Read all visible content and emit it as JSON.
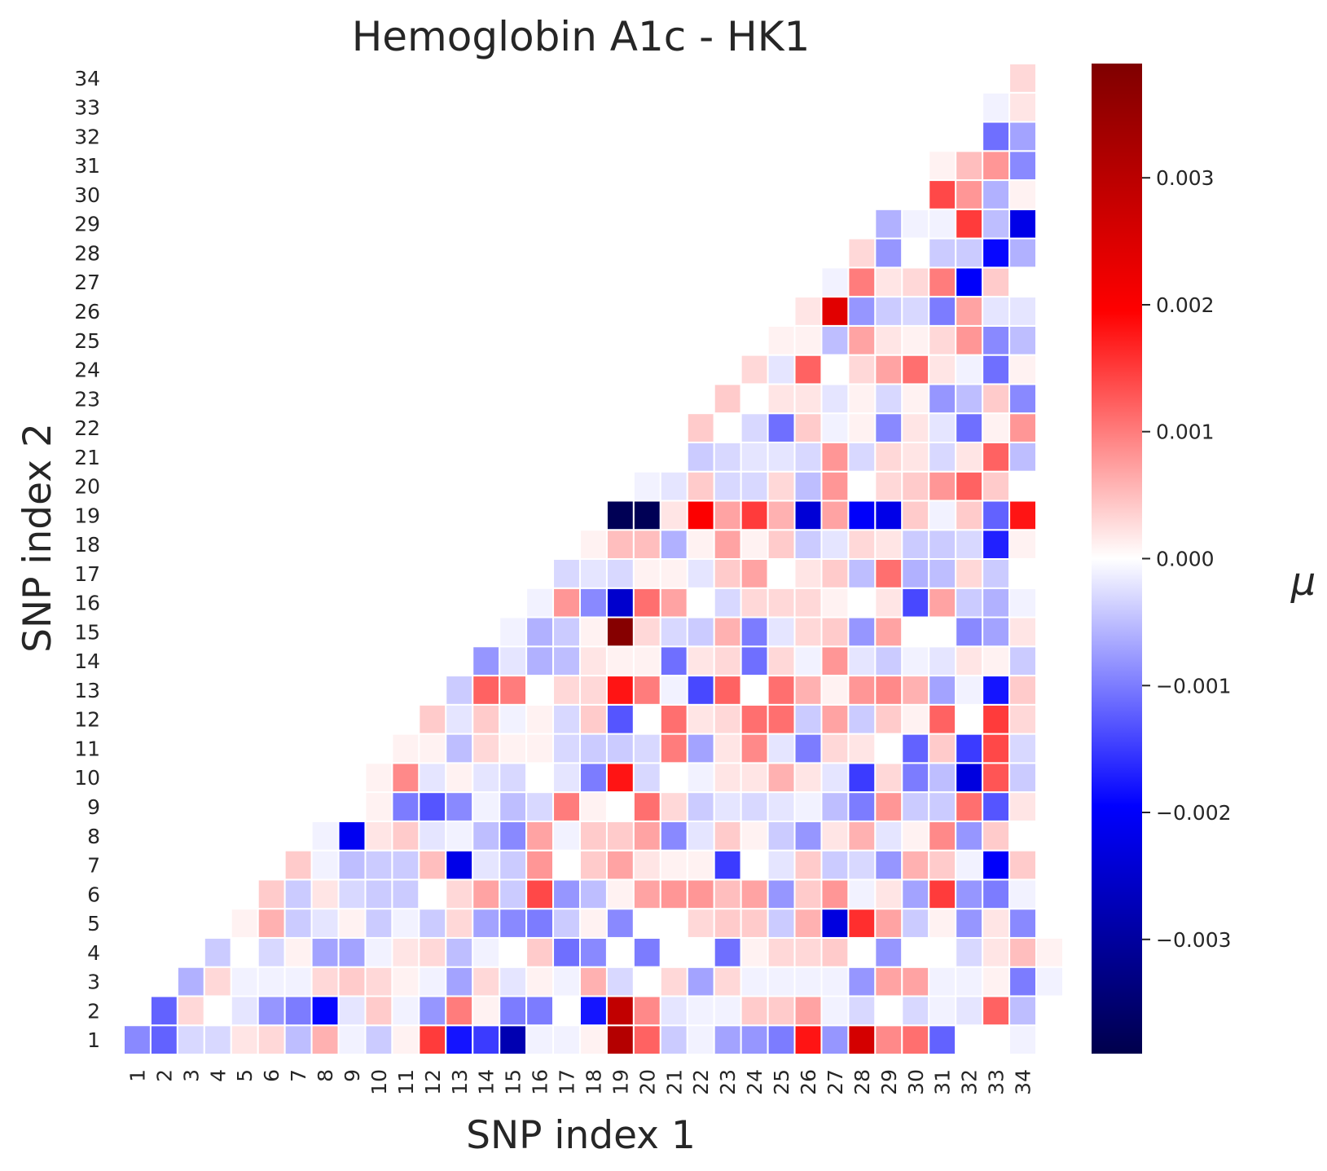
{
  "chart_data": {
    "type": "heatmap",
    "title": "Hemoglobin A1c - HK1",
    "xlabel": "SNP index 1",
    "ylabel": "SNP index 2",
    "colorbar_label": "μ",
    "colormap": "seismic",
    "colormap_stops": [
      "#00004c",
      "#0000ff",
      "#ffffff",
      "#ff0000",
      "#7f0000"
    ],
    "vlim": [
      -0.0039,
      0.0039
    ],
    "colorbar_ticks": [
      0.003,
      0.002,
      0.001,
      0.0,
      -0.001,
      -0.002,
      -0.003
    ],
    "colorbar_tick_labels": [
      "0.003",
      "0.002",
      "0.001",
      "0.000",
      "−0.001",
      "−0.002",
      "−0.003"
    ],
    "x_ticks": [
      "1",
      "2",
      "3",
      "4",
      "5",
      "6",
      "7",
      "8",
      "9",
      "10",
      "11",
      "12",
      "13",
      "14",
      "15",
      "16",
      "17",
      "18",
      "19",
      "20",
      "21",
      "22",
      "23",
      "24",
      "25",
      "26",
      "27",
      "28",
      "29",
      "30",
      "31",
      "32",
      "33",
      "34"
    ],
    "y_ticks": [
      "1",
      "2",
      "3",
      "4",
      "5",
      "6",
      "7",
      "8",
      "9",
      "10",
      "11",
      "12",
      "13",
      "14",
      "15",
      "16",
      "17",
      "18",
      "19",
      "20",
      "21",
      "22",
      "23",
      "24",
      "25",
      "26",
      "27",
      "28",
      "29",
      "30",
      "31",
      "32",
      "33",
      "34"
    ],
    "mask": "lower-left triangle (rows with SNP index 2 > SNP index 1 are empty)",
    "rows_note": "rows[i] is SNP index 2 = i+1; values run from SNP index 1 = i+1 to 34",
    "rows": [
      [
        -0.0009,
        -0.0012,
        -0.0003,
        -0.0003,
        0.0002,
        0.0003,
        -0.0005,
        0.0006,
        -0.0001,
        -0.0004,
        0.0001,
        0.0015,
        -0.0018,
        -0.0015,
        -0.0028,
        -0.0001,
        -0.0001,
        0.0001,
        0.0031,
        0.0012,
        -0.0004,
        -0.0001,
        -0.0007,
        -0.0008,
        -0.001,
        0.0018,
        -0.0008,
        0.0026,
        0.0009,
        0.0011,
        -0.0012,
        0.0,
        0.0,
        -0.0001
      ],
      [
        -0.0012,
        0.0003,
        0.0,
        -0.0002,
        -0.0008,
        -0.001,
        -0.0019,
        -0.0002,
        0.0004,
        -0.0001,
        -0.0008,
        0.001,
        0.0001,
        -0.001,
        -0.001,
        0.0,
        -0.0018,
        0.0029,
        0.0009,
        -0.0002,
        -0.0001,
        -0.0001,
        0.0004,
        0.0004,
        0.0007,
        -0.0001,
        -0.0003,
        0.0,
        -0.0003,
        -0.0001,
        -0.0002,
        0.0012,
        -0.0005
      ],
      [
        -0.0006,
        0.0003,
        -0.0001,
        -0.0001,
        -0.0001,
        0.0003,
        0.0004,
        0.0003,
        0.0001,
        -0.0001,
        -0.0007,
        0.0003,
        -0.0002,
        0.0001,
        -0.0001,
        0.0006,
        -0.0003,
        0.0,
        0.0003,
        -0.0007,
        0.0003,
        -0.0001,
        -0.0001,
        -0.0001,
        -0.0001,
        -0.0008,
        0.0007,
        0.0007,
        -0.0001,
        -0.0001,
        0.0001,
        -0.001,
        -0.0001
      ],
      [
        -0.0004,
        0.0,
        -0.0003,
        0.0001,
        -0.0007,
        -0.0007,
        -0.0001,
        0.0002,
        0.0003,
        -0.0005,
        -0.0001,
        0.0,
        0.0004,
        -0.0011,
        -0.0009,
        0.0,
        -0.001,
        0.0,
        0.0,
        -0.0011,
        0.0001,
        0.0003,
        0.0003,
        0.0004,
        0.0,
        -0.0008,
        0.0,
        0.0,
        -0.0003,
        0.0002,
        0.0005,
        0.0001
      ],
      [
        0.0001,
        0.0006,
        -0.0004,
        -0.0002,
        0.0001,
        -0.0004,
        -0.0001,
        -0.0004,
        0.0003,
        -0.0007,
        -0.0009,
        -0.001,
        -0.0004,
        0.0001,
        -0.0009,
        0.0,
        0.0,
        0.0003,
        0.0004,
        0.0004,
        -0.0004,
        0.0006,
        -0.0023,
        0.0016,
        0.0007,
        -0.0004,
        0.0001,
        -0.0008,
        0.0002,
        -0.0009
      ],
      [
        0.0004,
        -0.0004,
        0.0002,
        -0.0003,
        -0.0004,
        -0.0004,
        0.0,
        0.0003,
        0.0007,
        -0.0004,
        0.0014,
        -0.0008,
        -0.0005,
        0.0001,
        0.0007,
        0.0008,
        0.0008,
        0.0005,
        0.0007,
        -0.0008,
        0.0004,
        0.0008,
        -0.0001,
        0.0002,
        -0.0007,
        0.0015,
        -0.0008,
        -0.001,
        -0.0001
      ],
      [
        0.0004,
        -0.0001,
        -0.0005,
        -0.0004,
        -0.0004,
        0.0005,
        -0.0022,
        -0.0002,
        -0.0004,
        0.0008,
        0.0,
        0.0004,
        0.0007,
        0.0002,
        0.0001,
        0.0001,
        -0.0015,
        0.0,
        -0.0002,
        0.0004,
        -0.0004,
        -0.0003,
        -0.0008,
        0.0006,
        0.0004,
        -0.0001,
        -0.002,
        0.0004
      ],
      [
        -0.0001,
        -0.0021,
        0.0002,
        0.0004,
        -0.0002,
        -0.0001,
        -0.0005,
        -0.0009,
        0.0007,
        -0.0001,
        0.0004,
        0.0004,
        0.0007,
        -0.0009,
        -0.0002,
        0.0004,
        0.0001,
        -0.0004,
        -0.0008,
        0.0002,
        0.0006,
        -0.0002,
        0.0001,
        0.0009,
        -0.0008,
        0.0004
      ],
      [
        0.0,
        0.0001,
        -0.001,
        -0.0013,
        -0.0009,
        -0.0001,
        -0.0005,
        -0.0003,
        0.001,
        0.0001,
        0.0,
        0.0011,
        0.0003,
        -0.0004,
        -0.0002,
        -0.0003,
        -0.0002,
        -0.0001,
        -0.0005,
        -0.001,
        0.0008,
        -0.0004,
        -0.0004,
        0.0011,
        -0.0013,
        0.0002
      ],
      [
        0.0001,
        0.0009,
        -0.0002,
        0.0001,
        -0.0002,
        -0.0003,
        0.0,
        -0.0002,
        -0.001,
        0.0018,
        -0.0003,
        0.0,
        -0.0001,
        0.0002,
        0.0002,
        0.0006,
        0.0002,
        -0.0002,
        -0.0015,
        0.0003,
        -0.001,
        -0.0005,
        -0.0023,
        0.0013,
        -0.0004
      ],
      [
        0.0001,
        0.0001,
        -0.0005,
        0.0003,
        0.0001,
        0.0001,
        -0.0003,
        -0.0004,
        -0.0004,
        -0.0003,
        0.001,
        -0.0007,
        0.0002,
        0.0009,
        -0.0002,
        -0.001,
        0.0003,
        0.0002,
        0.0,
        -0.0012,
        0.0004,
        -0.0015,
        0.0014,
        -0.0003
      ],
      [
        0.0004,
        -0.0002,
        0.0004,
        -0.0001,
        0.0001,
        -0.0003,
        0.0004,
        -0.0013,
        0.0,
        0.0011,
        0.0002,
        0.0003,
        0.0011,
        0.0011,
        -0.0004,
        0.0007,
        -0.0004,
        0.0004,
        0.0001,
        0.0012,
        0.0,
        0.0015,
        0.0003
      ],
      [
        -0.0004,
        0.0012,
        0.001,
        0.0,
        0.0003,
        0.0003,
        0.0018,
        0.001,
        -0.0001,
        -0.0014,
        0.0012,
        0.0,
        0.0011,
        0.0006,
        0.0001,
        0.0008,
        0.0009,
        0.0006,
        -0.0007,
        -0.0001,
        -0.0018,
        0.0004
      ],
      [
        -0.0008,
        -0.0002,
        -0.0006,
        -0.0005,
        0.0002,
        0.0001,
        0.0001,
        -0.0011,
        0.0002,
        0.0003,
        -0.0011,
        0.0003,
        -0.0001,
        0.0008,
        -0.0002,
        -0.0004,
        -0.0001,
        -0.0002,
        0.0002,
        0.0001,
        -0.0004
      ],
      [
        -0.0001,
        -0.0006,
        -0.0004,
        0.0001,
        0.0038,
        0.0003,
        -0.0003,
        -0.0004,
        0.0006,
        -0.001,
        -0.0002,
        0.0003,
        0.0004,
        -0.0008,
        0.0007,
        0.0,
        0.0,
        -0.0009,
        -0.0007,
        0.0002
      ],
      [
        -0.0001,
        0.0008,
        -0.0009,
        -0.0025,
        0.0011,
        0.0007,
        0.0,
        -0.0003,
        0.0003,
        0.0003,
        0.0003,
        0.0001,
        0.0,
        0.0002,
        -0.0014,
        0.0007,
        -0.0004,
        -0.0006,
        -0.0001
      ],
      [
        -0.0003,
        -0.0002,
        -0.0003,
        0.0001,
        0.0001,
        -0.0002,
        0.0004,
        0.0007,
        0.0,
        0.0002,
        0.0004,
        -0.0005,
        0.0011,
        -0.0006,
        -0.0005,
        0.0003,
        -0.0004,
        0.0
      ],
      [
        0.0001,
        0.0005,
        0.0005,
        -0.0006,
        0.0001,
        0.0007,
        0.0001,
        0.0004,
        -0.0004,
        -0.0002,
        0.0003,
        0.0002,
        -0.0004,
        -0.0004,
        -0.0003,
        -0.0017,
        0.0001
      ],
      [
        -0.0038,
        -0.0038,
        0.0002,
        0.002,
        0.0007,
        0.0015,
        0.0006,
        -0.0024,
        0.0007,
        -0.002,
        -0.0022,
        0.0004,
        -0.0001,
        0.0004,
        -0.0012,
        0.0018
      ],
      [
        -0.0001,
        -0.0002,
        0.0004,
        -0.0003,
        -0.0003,
        0.0003,
        -0.0005,
        0.0008,
        0.0,
        0.0003,
        0.0004,
        0.0008,
        0.0012,
        0.0004,
        0.0
      ],
      [
        0.0,
        -0.0004,
        -0.0003,
        -0.0002,
        -0.0002,
        -0.0003,
        0.0008,
        -0.0003,
        0.0003,
        0.0002,
        -0.0003,
        0.0002,
        0.0012,
        -0.0005
      ],
      [
        0.0004,
        0.0,
        -0.0003,
        -0.0011,
        0.0004,
        -0.0001,
        0.0001,
        -0.0009,
        0.0002,
        -0.0002,
        -0.0011,
        0.0001,
        0.0008
      ],
      [
        0.0004,
        0.0,
        0.0002,
        0.0002,
        -0.0002,
        0.0001,
        -0.0003,
        0.0001,
        -0.0008,
        -0.0005,
        0.0004,
        -0.0009
      ],
      [
        0.0003,
        -0.0002,
        0.0012,
        0.0,
        0.0003,
        0.0007,
        0.0011,
        0.0002,
        -0.0001,
        -0.0011,
        0.0001
      ],
      [
        0.0001,
        0.0001,
        -0.0005,
        0.0007,
        0.0002,
        0.0001,
        0.0003,
        0.0008,
        -0.0009,
        -0.0005
      ],
      [
        0.0002,
        0.0024,
        -0.0008,
        -0.0004,
        -0.0003,
        -0.001,
        0.0007,
        -0.0002,
        -0.0002
      ],
      [
        -0.0001,
        0.001,
        0.0002,
        0.0003,
        0.001,
        -0.002,
        0.0004
      ],
      [
        0.0003,
        -0.0008,
        0.0,
        -0.0004,
        -0.0004,
        -0.0019,
        -0.0006
      ],
      [
        -0.0006,
        -0.0001,
        -0.0001,
        0.0015,
        -0.0005,
        -0.0022
      ],
      [
        0.0,
        0.0014,
        0.0008,
        -0.0006,
        0.0001
      ],
      [
        0.0001,
        0.0005,
        0.0008,
        -0.0009
      ],
      [
        0.0,
        -0.0011,
        -0.0007
      ],
      [
        -0.0001,
        0.0002
      ],
      [
        0.0003
      ]
    ]
  }
}
